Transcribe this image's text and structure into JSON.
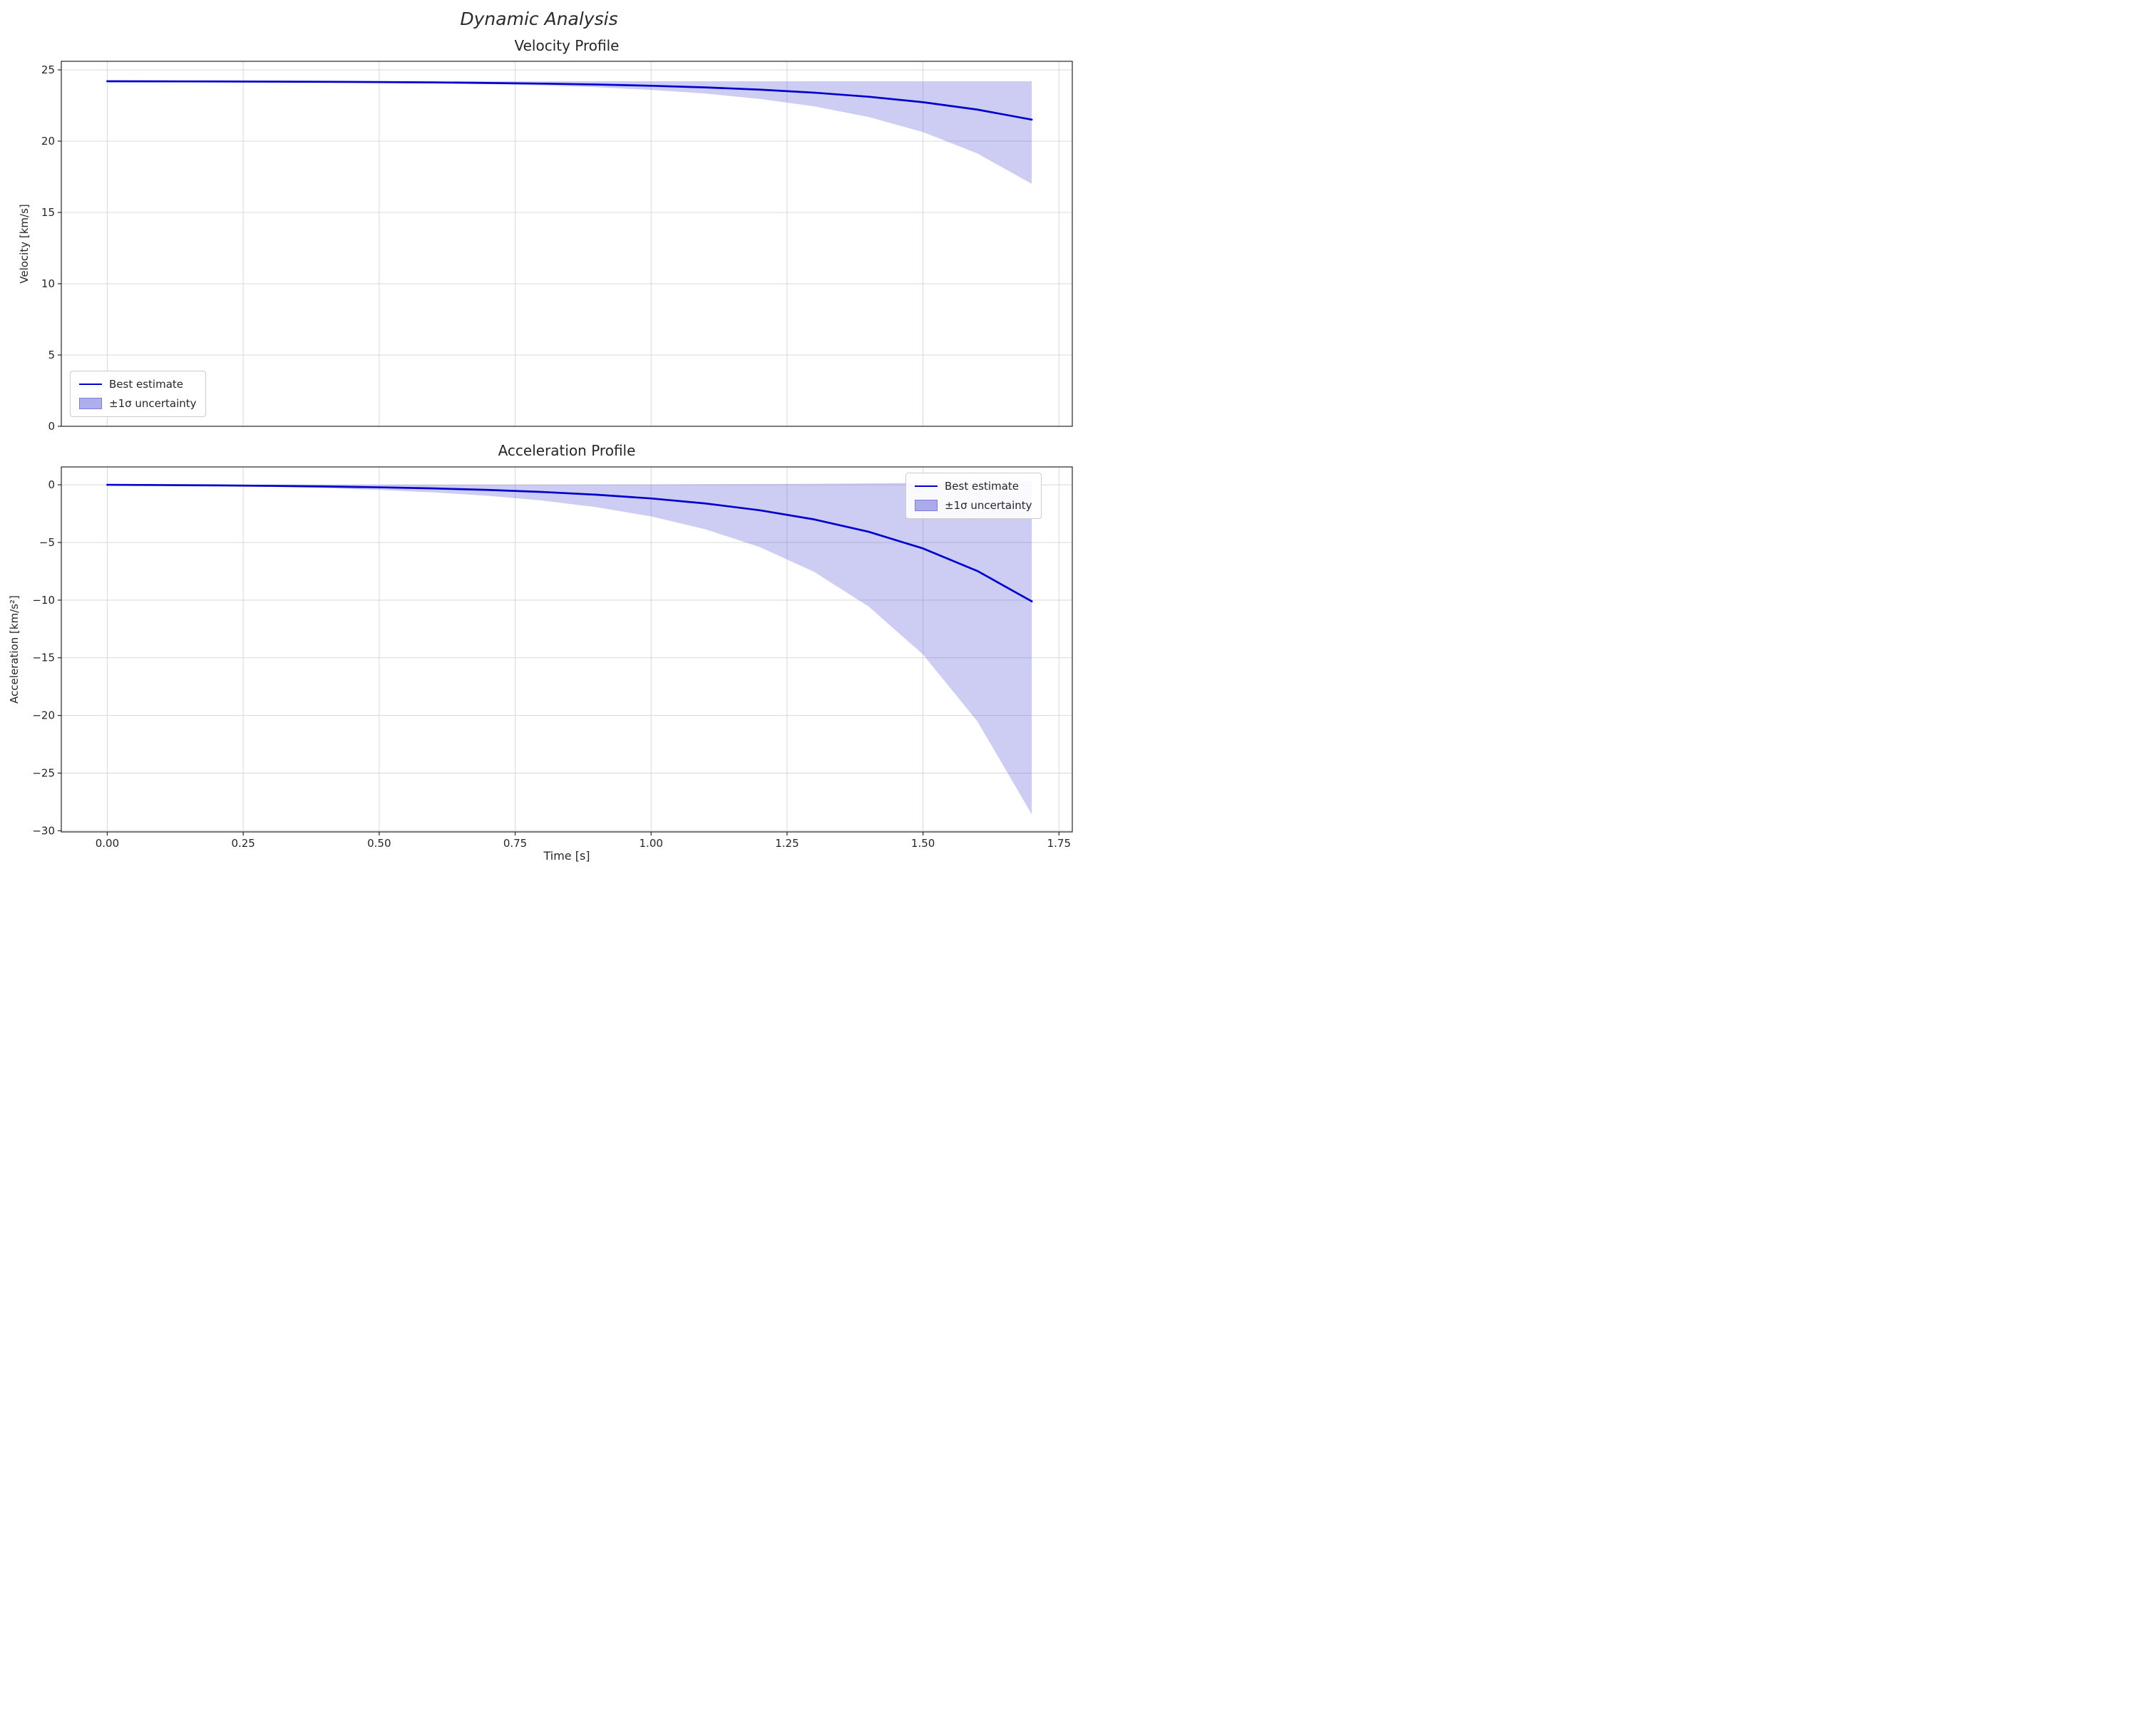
{
  "figure": {
    "title": "Dynamic Analysis"
  },
  "legend": {
    "line_label": "Best estimate",
    "band_label": "±1σ uncertainty"
  },
  "colors": {
    "line": "#0000cc",
    "band": "rgba(75,75,215,0.28)",
    "band_legend": "rgba(75,75,215,0.45)",
    "grid": "#d8d8d8",
    "spine": "#262626",
    "text": "#262626"
  },
  "chart_data": {
    "type": "line",
    "title": "Dynamic Analysis",
    "xlabel": "Time [s]",
    "grid": true,
    "charts": [
      {
        "title": "Velocity Profile",
        "ylabel": "Velocity [km/s]",
        "xlim": [
          -0.0845,
          1.7745
        ],
        "ylim": [
          0,
          25.6
        ],
        "x_ticks": [
          0.0,
          0.25,
          0.5,
          0.75,
          1.0,
          1.25,
          1.5,
          1.75
        ],
        "x_tick_labels": [
          "0.00",
          "0.25",
          "0.50",
          "0.75",
          "1.00",
          "1.25",
          "1.50",
          "1.75"
        ],
        "show_x_tick_labels": false,
        "y_ticks": [
          0,
          5,
          10,
          15,
          20,
          25
        ],
        "y_tick_labels": [
          "0",
          "5",
          "10",
          "15",
          "20",
          "25"
        ],
        "legend_position": "lower-left",
        "x": [
          0.0,
          0.1,
          0.2,
          0.3,
          0.4,
          0.5,
          0.6,
          0.7,
          0.8,
          0.9,
          1.0,
          1.1,
          1.2,
          1.3,
          1.4,
          1.5,
          1.6,
          1.7
        ],
        "series": [
          {
            "name": "Best estimate",
            "values": [
              24.2,
              24.194,
              24.186,
              24.176,
              24.162,
              24.143,
              24.117,
              24.082,
              24.035,
              23.971,
              23.885,
              23.769,
              23.613,
              23.401,
              23.116,
              22.731,
              22.212,
              21.51
            ]
          }
        ],
        "band": {
          "name": "±1σ uncertainty",
          "upper": [
            24.2,
            24.2,
            24.2,
            24.2,
            24.2,
            24.2,
            24.2,
            24.2,
            24.2,
            24.2,
            24.2,
            24.2,
            24.2,
            24.2,
            24.2,
            24.2,
            24.2,
            24.2
          ],
          "lower": [
            24.2,
            24.192,
            24.181,
            24.165,
            24.143,
            24.111,
            24.065,
            24.001,
            23.91,
            23.78,
            23.596,
            23.335,
            22.965,
            22.44,
            21.694,
            20.636,
            19.135,
            17.004
          ]
        }
      },
      {
        "title": "Acceleration Profile",
        "ylabel": "Acceleration [km/s²]",
        "xlabel": "Time [s]",
        "xlim": [
          -0.0845,
          1.7745
        ],
        "ylim": [
          -30.1,
          1.55
        ],
        "x_ticks": [
          0.0,
          0.25,
          0.5,
          0.75,
          1.0,
          1.25,
          1.5,
          1.75
        ],
        "x_tick_labels": [
          "0.00",
          "0.25",
          "0.50",
          "0.75",
          "1.00",
          "1.25",
          "1.50",
          "1.75"
        ],
        "show_x_tick_labels": true,
        "y_ticks": [
          0,
          -5,
          -10,
          -15,
          -20,
          -25,
          -30
        ],
        "y_tick_labels": [
          "0",
          "−5",
          "−10",
          "−15",
          "−20",
          "−25",
          "−30"
        ],
        "legend_position": "upper-right",
        "x": [
          0.0,
          0.1,
          0.2,
          0.3,
          0.4,
          0.5,
          0.6,
          0.7,
          0.8,
          0.9,
          1.0,
          1.1,
          1.2,
          1.3,
          1.4,
          1.5,
          1.6,
          1.7
        ],
        "series": [
          {
            "name": "Best estimate",
            "values": [
              0,
              -0.022,
              -0.051,
              -0.091,
              -0.144,
              -0.216,
              -0.313,
              -0.444,
              -0.621,
              -0.861,
              -1.183,
              -1.619,
              -2.207,
              -3.001,
              -4.073,
              -5.519,
              -7.472,
              -10.107
            ]
          }
        ],
        "band": {
          "name": "±1σ uncertainty",
          "upper": [
            0,
            0.001,
            0.002,
            0.003,
            0.004,
            0.007,
            0.009,
            0.013,
            0.019,
            0.026,
            0.036,
            0.049,
            0.066,
            0.09,
            0.122,
            0.166,
            0.224,
            0.303
          ],
          "lower": [
            0,
            -0.041,
            -0.098,
            -0.178,
            -0.288,
            -0.442,
            -0.656,
            -0.953,
            -1.366,
            -1.942,
            -2.742,
            -3.855,
            -5.403,
            -7.556,
            -10.551,
            -14.718,
            -20.514,
            -28.575
          ]
        }
      }
    ]
  }
}
